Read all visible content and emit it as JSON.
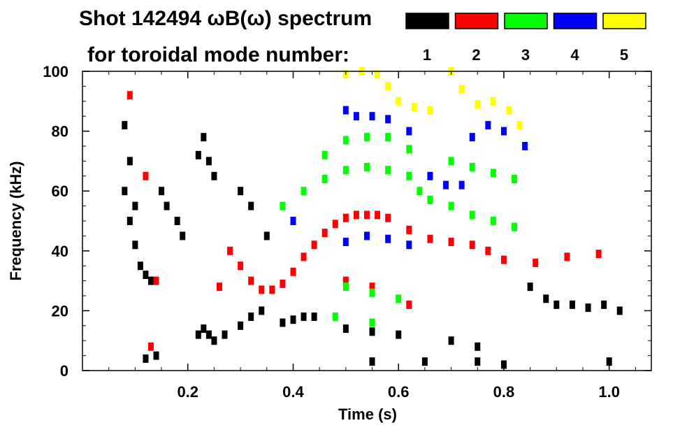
{
  "chart_data": {
    "type": "heatmap",
    "title": "Shot 142494 ωB(ω) spectrum",
    "legend_label": "for toroidal mode number:",
    "legend_placement": "top-right",
    "legend": [
      {
        "name": "1",
        "color": "#000000"
      },
      {
        "name": "2",
        "color": "#ff0000"
      },
      {
        "name": "3",
        "color": "#00ff00"
      },
      {
        "name": "4",
        "color": "#0000ff"
      },
      {
        "name": "5",
        "color": "#ffff00"
      }
    ],
    "xlabel": "Time (s)",
    "ylabel": "Frequency (kHz)",
    "xlim": [
      0.0,
      1.08
    ],
    "ylim": [
      0,
      100
    ],
    "xticks": [
      0.2,
      0.4,
      0.6,
      0.8,
      1.0
    ],
    "xtick_labels": [
      "0.2",
      "0.4",
      "0.6",
      "0.8",
      "1.0"
    ],
    "yticks": [
      0,
      20,
      40,
      60,
      80,
      100
    ],
    "ytick_labels": [
      "0",
      "20",
      "40",
      "60",
      "80",
      "100"
    ],
    "grid": false,
    "series": [
      {
        "name": "1",
        "color": "#000000",
        "points": [
          [
            0.08,
            82
          ],
          [
            0.08,
            60
          ],
          [
            0.09,
            70
          ],
          [
            0.09,
            50
          ],
          [
            0.1,
            55
          ],
          [
            0.1,
            42
          ],
          [
            0.11,
            35
          ],
          [
            0.12,
            32
          ],
          [
            0.13,
            30
          ],
          [
            0.15,
            60
          ],
          [
            0.16,
            55
          ],
          [
            0.18,
            50
          ],
          [
            0.19,
            45
          ],
          [
            0.22,
            72
          ],
          [
            0.23,
            78
          ],
          [
            0.24,
            70
          ],
          [
            0.25,
            65
          ],
          [
            0.22,
            12
          ],
          [
            0.23,
            14
          ],
          [
            0.24,
            12
          ],
          [
            0.25,
            10
          ],
          [
            0.27,
            12
          ],
          [
            0.3,
            15
          ],
          [
            0.32,
            18
          ],
          [
            0.34,
            20
          ],
          [
            0.3,
            60
          ],
          [
            0.32,
            55
          ],
          [
            0.35,
            45
          ],
          [
            0.38,
            16
          ],
          [
            0.4,
            17
          ],
          [
            0.42,
            18
          ],
          [
            0.44,
            18
          ],
          [
            0.5,
            14
          ],
          [
            0.55,
            13
          ],
          [
            0.6,
            12
          ],
          [
            0.7,
            10
          ],
          [
            0.75,
            8
          ],
          [
            0.85,
            28
          ],
          [
            0.88,
            24
          ],
          [
            0.9,
            22
          ],
          [
            0.93,
            22
          ],
          [
            0.96,
            21
          ],
          [
            0.99,
            22
          ],
          [
            1.02,
            20
          ],
          [
            0.12,
            4
          ],
          [
            0.14,
            5
          ],
          [
            0.55,
            3
          ],
          [
            0.65,
            3
          ],
          [
            0.75,
            3
          ],
          [
            0.8,
            2
          ],
          [
            1.0,
            3
          ]
        ]
      },
      {
        "name": "2",
        "color": "#ff0000",
        "points": [
          [
            0.09,
            92
          ],
          [
            0.12,
            65
          ],
          [
            0.14,
            30
          ],
          [
            0.26,
            28
          ],
          [
            0.28,
            40
          ],
          [
            0.3,
            35
          ],
          [
            0.32,
            30
          ],
          [
            0.34,
            27
          ],
          [
            0.36,
            27
          ],
          [
            0.38,
            29
          ],
          [
            0.4,
            33
          ],
          [
            0.42,
            38
          ],
          [
            0.44,
            42
          ],
          [
            0.46,
            46
          ],
          [
            0.48,
            49
          ],
          [
            0.5,
            51
          ],
          [
            0.52,
            52
          ],
          [
            0.54,
            52
          ],
          [
            0.56,
            52
          ],
          [
            0.58,
            51
          ],
          [
            0.62,
            47
          ],
          [
            0.66,
            44
          ],
          [
            0.7,
            43
          ],
          [
            0.74,
            42
          ],
          [
            0.77,
            40
          ],
          [
            0.8,
            37
          ],
          [
            0.86,
            36
          ],
          [
            0.92,
            38
          ],
          [
            0.98,
            39
          ],
          [
            0.5,
            30
          ],
          [
            0.55,
            28
          ],
          [
            0.62,
            22
          ],
          [
            0.13,
            8
          ]
        ]
      },
      {
        "name": "3",
        "color": "#00ff00",
        "points": [
          [
            0.38,
            55
          ],
          [
            0.42,
            60
          ],
          [
            0.46,
            64
          ],
          [
            0.5,
            67
          ],
          [
            0.54,
            68
          ],
          [
            0.58,
            67
          ],
          [
            0.62,
            65
          ],
          [
            0.64,
            60
          ],
          [
            0.66,
            57
          ],
          [
            0.7,
            55
          ],
          [
            0.74,
            52
          ],
          [
            0.78,
            50
          ],
          [
            0.82,
            48
          ],
          [
            0.46,
            72
          ],
          [
            0.5,
            77
          ],
          [
            0.54,
            78
          ],
          [
            0.58,
            78
          ],
          [
            0.62,
            74
          ],
          [
            0.7,
            70
          ],
          [
            0.74,
            68
          ],
          [
            0.78,
            66
          ],
          [
            0.82,
            64
          ],
          [
            0.5,
            28
          ],
          [
            0.55,
            26
          ],
          [
            0.6,
            24
          ],
          [
            0.48,
            18
          ],
          [
            0.55,
            16
          ]
        ]
      },
      {
        "name": "4",
        "color": "#0000ff",
        "points": [
          [
            0.5,
            87
          ],
          [
            0.52,
            85
          ],
          [
            0.55,
            85
          ],
          [
            0.58,
            84
          ],
          [
            0.62,
            80
          ],
          [
            0.66,
            65
          ],
          [
            0.69,
            62
          ],
          [
            0.72,
            62
          ],
          [
            0.74,
            78
          ],
          [
            0.77,
            82
          ],
          [
            0.8,
            80
          ],
          [
            0.84,
            75
          ],
          [
            0.5,
            43
          ],
          [
            0.54,
            45
          ],
          [
            0.58,
            44
          ],
          [
            0.62,
            42
          ],
          [
            0.4,
            50
          ]
        ]
      },
      {
        "name": "5",
        "color": "#ffff00",
        "points": [
          [
            0.5,
            99
          ],
          [
            0.53,
            100
          ],
          [
            0.56,
            99
          ],
          [
            0.58,
            95
          ],
          [
            0.6,
            90
          ],
          [
            0.63,
            88
          ],
          [
            0.66,
            87
          ],
          [
            0.7,
            100
          ],
          [
            0.72,
            94
          ],
          [
            0.75,
            89
          ],
          [
            0.78,
            90
          ],
          [
            0.81,
            87
          ],
          [
            0.83,
            82
          ]
        ]
      }
    ]
  }
}
